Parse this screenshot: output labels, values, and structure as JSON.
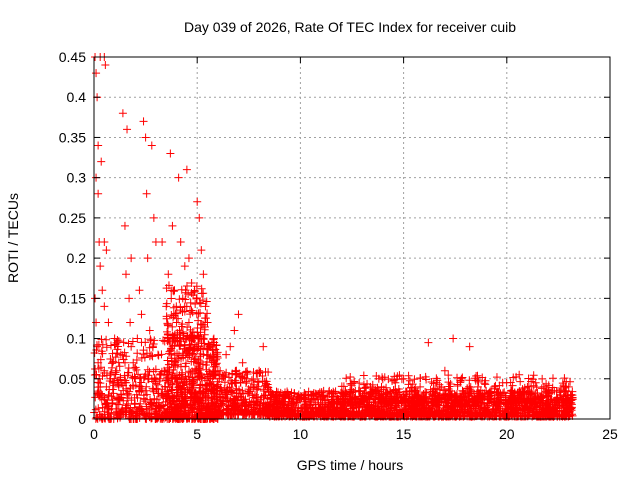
{
  "chart_data": {
    "type": "scatter",
    "title": "Day 039 of 2026, Rate Of TEC Index for receiver cuib",
    "xlabel": "GPS time / hours",
    "ylabel": "ROTI / TECUs",
    "xlim": [
      0,
      25
    ],
    "ylim": [
      0,
      0.45
    ],
    "x_ticks": [
      0,
      5,
      10,
      15,
      20,
      25
    ],
    "x_tick_labels": [
      "0",
      "5",
      "10",
      "15",
      "20",
      "25"
    ],
    "y_ticks": [
      0,
      0.05,
      0.1,
      0.15,
      0.2,
      0.25,
      0.3,
      0.35,
      0.4,
      0.45
    ],
    "y_tick_labels": [
      "0",
      "0.05",
      "0.1",
      "0.15",
      "0.2",
      "0.25",
      "0.3",
      "0.35",
      "0.4",
      "0.45"
    ],
    "grid": true,
    "marker": "+",
    "color": "#ff0000",
    "series": [
      {
        "name": "ROTI",
        "points": [
          [
            0.05,
            0.45
          ],
          [
            0.1,
            0.43
          ],
          [
            0.15,
            0.4
          ],
          [
            0.2,
            0.34
          ],
          [
            0.3,
            0.45
          ],
          [
            0.35,
            0.32
          ],
          [
            0.5,
            0.45
          ],
          [
            0.55,
            0.44
          ],
          [
            0.1,
            0.3
          ],
          [
            0.2,
            0.28
          ],
          [
            0.25,
            0.22
          ],
          [
            0.3,
            0.19
          ],
          [
            0.4,
            0.16
          ],
          [
            0.5,
            0.14
          ],
          [
            0.6,
            0.21
          ],
          [
            0.7,
            0.12
          ],
          [
            0.05,
            0.15
          ],
          [
            0.1,
            0.12
          ],
          [
            0.15,
            0.09
          ],
          [
            0.2,
            0.07
          ],
          [
            0.25,
            0.05
          ],
          [
            0.3,
            0.04
          ],
          [
            0.4,
            0.03
          ],
          [
            0.5,
            0.06
          ],
          [
            0.6,
            0.04
          ],
          [
            0.7,
            0.03
          ],
          [
            0.8,
            0.05
          ],
          [
            0.9,
            0.07
          ],
          [
            1.0,
            0.1
          ],
          [
            1.1,
            0.06
          ],
          [
            1.2,
            0.04
          ],
          [
            1.3,
            0.08
          ],
          [
            1.4,
            0.38
          ],
          [
            1.5,
            0.24
          ],
          [
            1.55,
            0.18
          ],
          [
            1.6,
            0.36
          ],
          [
            1.7,
            0.15
          ],
          [
            1.75,
            0.12
          ],
          [
            1.8,
            0.09
          ],
          [
            1.9,
            0.07
          ],
          [
            2.0,
            0.05
          ],
          [
            2.1,
            0.1
          ],
          [
            2.2,
            0.04
          ],
          [
            2.3,
            0.13
          ],
          [
            2.4,
            0.37
          ],
          [
            2.5,
            0.35
          ],
          [
            2.55,
            0.28
          ],
          [
            2.6,
            0.2
          ],
          [
            2.7,
            0.11
          ],
          [
            2.8,
            0.34
          ],
          [
            2.9,
            0.25
          ],
          [
            3.0,
            0.22
          ],
          [
            3.1,
            0.08
          ],
          [
            3.2,
            0.05
          ],
          [
            3.3,
            0.03
          ],
          [
            3.4,
            0.06
          ],
          [
            3.5,
            0.14
          ],
          [
            3.6,
            0.18
          ],
          [
            3.7,
            0.33
          ],
          [
            3.8,
            0.24
          ],
          [
            3.9,
            0.16
          ],
          [
            4.0,
            0.12
          ],
          [
            4.1,
            0.3
          ],
          [
            4.2,
            0.22
          ],
          [
            4.3,
            0.15
          ],
          [
            4.4,
            0.19
          ],
          [
            4.5,
            0.31
          ],
          [
            4.6,
            0.12
          ],
          [
            4.7,
            0.1
          ],
          [
            4.8,
            0.08
          ],
          [
            4.9,
            0.06
          ],
          [
            5.0,
            0.27
          ],
          [
            5.1,
            0.25
          ],
          [
            5.2,
            0.21
          ],
          [
            5.3,
            0.18
          ],
          [
            5.4,
            0.14
          ],
          [
            5.5,
            0.12
          ],
          [
            5.6,
            0.09
          ],
          [
            5.8,
            0.07
          ],
          [
            6.0,
            0.06
          ],
          [
            6.2,
            0.05
          ],
          [
            6.4,
            0.08
          ],
          [
            6.6,
            0.09
          ],
          [
            6.8,
            0.11
          ],
          [
            7.0,
            0.13
          ],
          [
            7.2,
            0.07
          ],
          [
            7.4,
            0.05
          ],
          [
            7.6,
            0.04
          ],
          [
            7.8,
            0.03
          ],
          [
            8.0,
            0.06
          ],
          [
            8.2,
            0.09
          ],
          [
            8.4,
            0.04
          ],
          [
            8.6,
            0.03
          ],
          [
            9.0,
            0.025
          ],
          [
            9.4,
            0.03
          ],
          [
            9.8,
            0.02
          ],
          [
            10.2,
            0.025
          ],
          [
            10.6,
            0.03
          ],
          [
            11.0,
            0.02
          ],
          [
            11.4,
            0.035
          ],
          [
            11.8,
            0.025
          ],
          [
            12.2,
            0.03
          ],
          [
            12.6,
            0.045
          ],
          [
            13.0,
            0.025
          ],
          [
            13.4,
            0.04
          ],
          [
            13.8,
            0.05
          ],
          [
            14.2,
            0.03
          ],
          [
            14.6,
            0.045
          ],
          [
            15.0,
            0.05
          ],
          [
            15.4,
            0.035
          ],
          [
            15.8,
            0.04
          ],
          [
            16.2,
            0.095
          ],
          [
            16.6,
            0.045
          ],
          [
            17.0,
            0.06
          ],
          [
            17.4,
            0.1
          ],
          [
            17.8,
            0.05
          ],
          [
            18.2,
            0.09
          ],
          [
            18.6,
            0.04
          ],
          [
            19.0,
            0.035
          ],
          [
            19.4,
            0.04
          ],
          [
            19.8,
            0.045
          ],
          [
            20.2,
            0.035
          ],
          [
            20.6,
            0.055
          ],
          [
            21.0,
            0.04
          ],
          [
            21.4,
            0.045
          ],
          [
            21.8,
            0.04
          ],
          [
            22.2,
            0.035
          ],
          [
            22.6,
            0.03
          ],
          [
            22.8,
            0.035
          ],
          [
            23.0,
            0.04
          ],
          [
            23.1,
            0.02
          ],
          [
            0.5,
            0.22
          ],
          [
            1.8,
            0.2
          ],
          [
            2.2,
            0.16
          ],
          [
            3.3,
            0.22
          ],
          [
            4.6,
            0.2
          ],
          [
            5.3,
            0.08
          ],
          [
            6.9,
            0.06
          ],
          [
            8.9,
            0.02
          ],
          [
            11.2,
            0.015
          ],
          [
            14.9,
            0.02
          ],
          [
            19.1,
            0.02
          ],
          [
            21.9,
            0.02
          ],
          [
            0.9,
            0.02
          ],
          [
            1.6,
            0.03
          ],
          [
            2.9,
            0.02
          ],
          [
            4.1,
            0.04
          ]
        ]
      }
    ],
    "background_density": {
      "bands": [
        {
          "x_range": [
            0,
            3.5
          ],
          "y_range": [
            0.0,
            0.1
          ],
          "count": 380
        },
        {
          "x_range": [
            3.5,
            6.0
          ],
          "y_range": [
            0.0,
            0.1
          ],
          "count": 650
        },
        {
          "x_range": [
            3.5,
            5.5
          ],
          "y_range": [
            0.1,
            0.17
          ],
          "count": 120
        },
        {
          "x_range": [
            6.0,
            8.5
          ],
          "y_range": [
            0.005,
            0.06
          ],
          "count": 320
        },
        {
          "x_range": [
            8.5,
            23.2
          ],
          "y_range": [
            0.003,
            0.035
          ],
          "count": 1900
        },
        {
          "x_range": [
            12.0,
            23.2
          ],
          "y_range": [
            0.02,
            0.055
          ],
          "count": 380
        }
      ]
    }
  }
}
